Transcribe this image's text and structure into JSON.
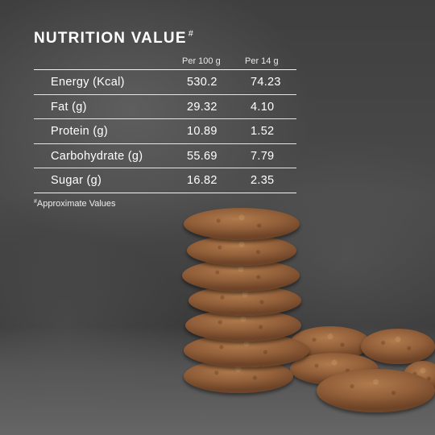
{
  "title": {
    "text": "NUTRITION VALUE",
    "mark": "#"
  },
  "columns": [
    "Per 100 g",
    "Per 14 g"
  ],
  "rows": [
    {
      "label": "Energy (Kcal)",
      "per_100g": "530.2",
      "per_14g": "74.23"
    },
    {
      "label": "Fat (g)",
      "per_100g": "29.32",
      "per_14g": "4.10"
    },
    {
      "label": "Protein (g)",
      "per_100g": "10.89",
      "per_14g": "1.52"
    },
    {
      "label": "Carbohydrate (g)",
      "per_100g": "55.69",
      "per_14g": "7.79"
    },
    {
      "label": "Sugar (g)",
      "per_100g": "16.82",
      "per_14g": "2.35"
    }
  ],
  "footnote": {
    "mark": "#",
    "text": "Approximate Values"
  }
}
